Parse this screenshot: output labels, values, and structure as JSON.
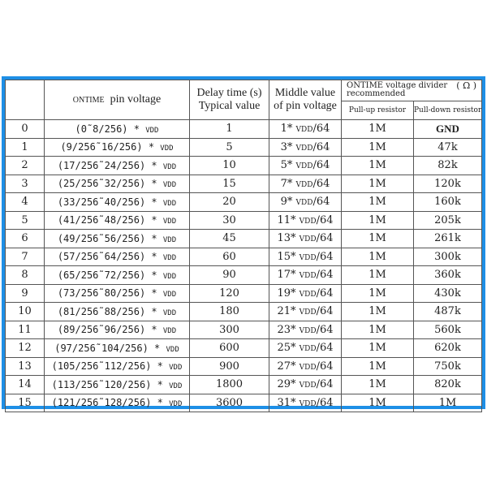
{
  "header": {
    "col_pin_voltage_prefix": "ONTIME",
    "col_pin_voltage": "pin voltage",
    "col_delay_line1": "Delay time (s)",
    "col_delay_line2": "Typical value",
    "col_middle_line1": "Middle value",
    "col_middle_line2": "of pin voltage",
    "col_divider": "ONTIME voltage divider",
    "col_divider_line2": "recommended",
    "col_divider_unit": "( Ω )",
    "col_pull_up": "Pull-up resistor",
    "col_pull_down": "Pull-down resistor"
  },
  "vdd": "VDD",
  "rows": [
    {
      "id": "0",
      "range": "(0˜8/256) *",
      "delay": "1",
      "mid": "1*",
      "mid_suffix": "/64",
      "pull_up": "1M",
      "pull_down": "GND"
    },
    {
      "id": "1",
      "range": "(9/256˜16/256) *",
      "delay": "5",
      "mid": "3*",
      "mid_suffix": "/64",
      "pull_up": "1M",
      "pull_down": "47k"
    },
    {
      "id": "2",
      "range": "(17/256˜24/256) *",
      "delay": "10",
      "mid": "5*",
      "mid_suffix": "/64",
      "pull_up": "1M",
      "pull_down": "82k"
    },
    {
      "id": "3",
      "range": "(25/256˜32/256) *",
      "delay": "15",
      "mid": "7*",
      "mid_suffix": "/64",
      "pull_up": "1M",
      "pull_down": "120k"
    },
    {
      "id": "4",
      "range": "(33/256˜40/256) *",
      "delay": "20",
      "mid": "9*",
      "mid_suffix": "/64",
      "pull_up": "1M",
      "pull_down": "160k"
    },
    {
      "id": "5",
      "range": "(41/256˜48/256) *",
      "delay": "30",
      "mid": "11*",
      "mid_suffix": "/64",
      "pull_up": "1M",
      "pull_down": "205k"
    },
    {
      "id": "6",
      "range": "(49/256˜56/256) *",
      "delay": "45",
      "mid": "13*",
      "mid_suffix": "/64",
      "pull_up": "1M",
      "pull_down": "261k"
    },
    {
      "id": "7",
      "range": "(57/256˜64/256) *",
      "delay": "60",
      "mid": "15*",
      "mid_suffix": "/64",
      "pull_up": "1M",
      "pull_down": "300k"
    },
    {
      "id": "8",
      "range": "(65/256˜72/256) *",
      "delay": "90",
      "mid": "17*",
      "mid_suffix": "/64",
      "pull_up": "1M",
      "pull_down": "360k"
    },
    {
      "id": "9",
      "range": "(73/256˜80/256) *",
      "delay": "120",
      "mid": "19*",
      "mid_suffix": "/64",
      "pull_up": "1M",
      "pull_down": "430k"
    },
    {
      "id": "10",
      "range": "(81/256˜88/256) *",
      "delay": "180",
      "mid": "21*",
      "mid_suffix": "/64",
      "pull_up": "1M",
      "pull_down": "487k"
    },
    {
      "id": "11",
      "range": "(89/256˜96/256) *",
      "delay": "300",
      "mid": "23*",
      "mid_suffix": "/64",
      "pull_up": "1M",
      "pull_down": "560k"
    },
    {
      "id": "12",
      "range": "(97/256˜104/256) *",
      "delay": "600",
      "mid": "25*",
      "mid_suffix": "/64",
      "pull_up": "1M",
      "pull_down": "620k"
    },
    {
      "id": "13",
      "range": "(105/256˜112/256) *",
      "delay": "900",
      "mid": "27*",
      "mid_suffix": "/64",
      "pull_up": "1M",
      "pull_down": "750k"
    },
    {
      "id": "14",
      "range": "(113/256˜120/256) *",
      "delay": "1800",
      "mid": "29*",
      "mid_suffix": "/64",
      "pull_up": "1M",
      "pull_down": "820k"
    },
    {
      "id": "15",
      "range": "(121/256˜128/256) *",
      "delay": "3600",
      "mid": "31*",
      "mid_suffix": "/64",
      "pull_up": "1M",
      "pull_down": "1M"
    }
  ]
}
